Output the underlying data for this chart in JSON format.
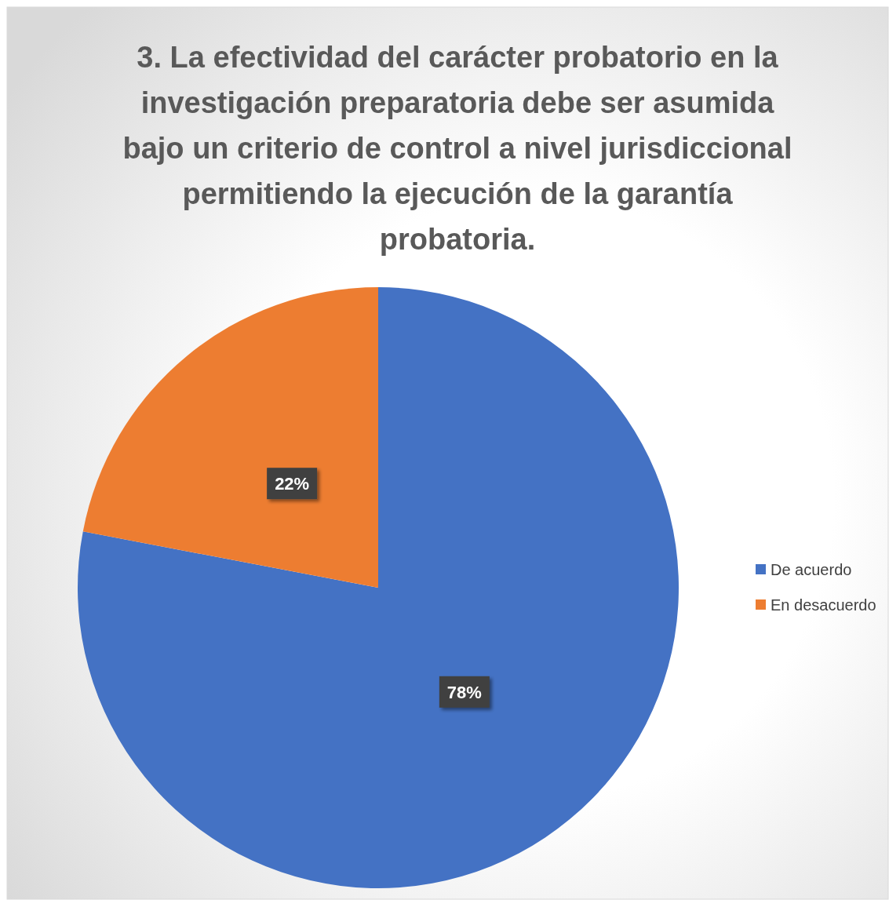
{
  "chart_data": {
    "type": "pie",
    "title": "3. La efectividad del carácter probatorio en la investigación preparatoria debe ser asumida bajo un criterio de control a nivel jurisdiccional permitiendo la ejecución de la garantía probatoria.",
    "categories": [
      "De acuerdo",
      "En desacuerdo"
    ],
    "values": [
      78,
      22
    ],
    "colors": [
      "#4472c4",
      "#ed7d31"
    ],
    "value_labels": [
      "78%",
      "22%"
    ],
    "legend": "right"
  }
}
